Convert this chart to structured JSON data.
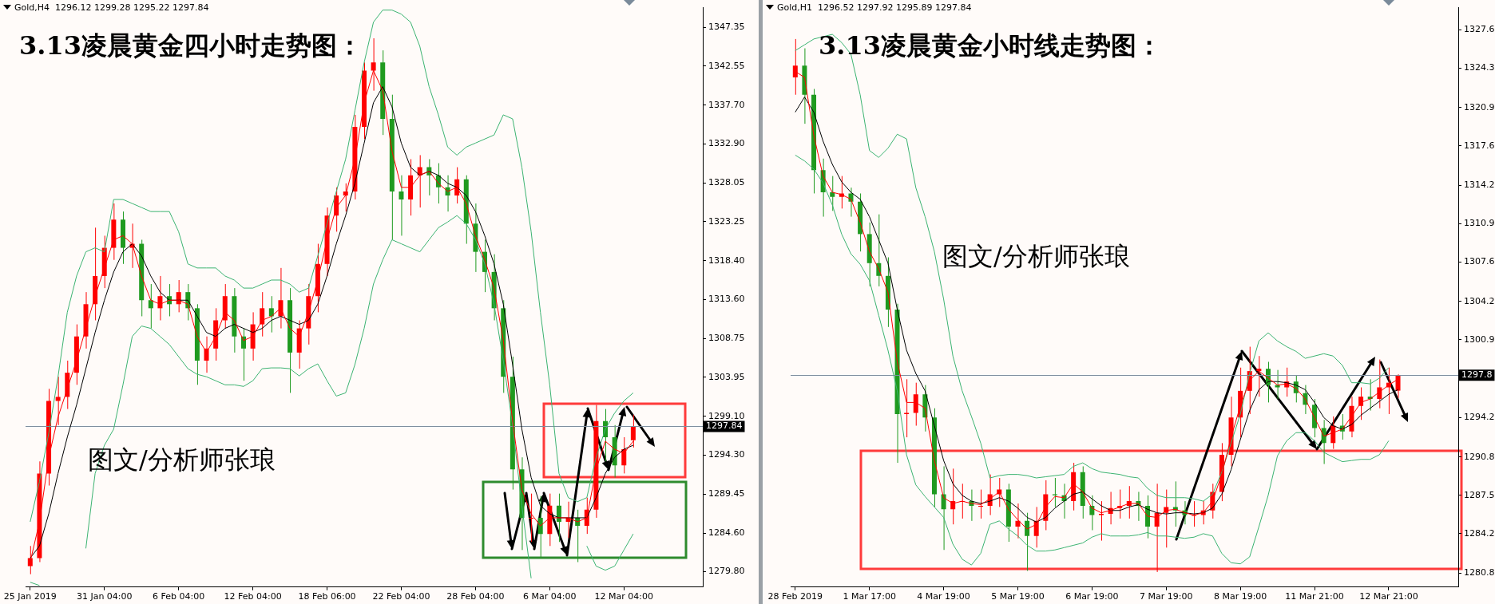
{
  "chart_data": [
    {
      "type": "candlestick",
      "title": "3.13凌晨黄金四小时走势图：",
      "subtitle": "Gold,H4  1296.12 1299.28 1295.22 1297.84",
      "annotations": [
        "图文/分析师张琅"
      ],
      "categories": [
        "25 Jan 2019",
        null,
        null,
        null,
        null,
        null,
        null,
        null,
        "31 Jan 04:00",
        null,
        null,
        null,
        null,
        null,
        null,
        null,
        "6 Feb 04:00",
        null,
        null,
        null,
        null,
        null,
        null,
        null,
        "12 Feb 04:00",
        null,
        null,
        null,
        null,
        null,
        null,
        null,
        "18 Feb 06:00",
        null,
        null,
        null,
        null,
        null,
        null,
        null,
        "22 Feb 04:00",
        null,
        null,
        null,
        null,
        null,
        null,
        null,
        "28 Feb 04:00",
        null,
        null,
        null,
        null,
        null,
        null,
        null,
        "6 Mar 04:00",
        null,
        null,
        null,
        null,
        null,
        null,
        null,
        "12 Mar 04:00",
        null,
        null,
        null,
        null,
        null,
        null,
        null,
        null
      ],
      "ohlc": [
        [
          1280.5,
          1283,
          1279.5,
          1281.5
        ],
        [
          1281.5,
          1293.5,
          1281,
          1292
        ],
        [
          1292,
          1302.5,
          1290.5,
          1301
        ],
        [
          1301,
          1304,
          1298,
          1301.5
        ],
        [
          1301.5,
          1306,
          1300,
          1304.5
        ],
        [
          1304.5,
          1310.5,
          1303,
          1309
        ],
        [
          1309,
          1314.5,
          1307.5,
          1313
        ],
        [
          1313,
          1322.5,
          1311,
          1316.5
        ],
        [
          1316.5,
          1321.5,
          1315,
          1320
        ],
        [
          1320,
          1325.5,
          1318.5,
          1323.5
        ],
        [
          1323.5,
          1324.5,
          1318,
          1320
        ],
        [
          1320,
          1323,
          1317.5,
          1320.5
        ],
        [
          1320.5,
          1321,
          1311.5,
          1313.5
        ],
        [
          1313.5,
          1315.5,
          1310,
          1312.5
        ],
        [
          1312.5,
          1316.5,
          1311,
          1314
        ],
        [
          1314,
          1315.5,
          1311.5,
          1313
        ],
        [
          1313,
          1316,
          1312,
          1314.5
        ],
        [
          1314.5,
          1315.5,
          1311,
          1312.5
        ],
        [
          1312.5,
          1313,
          1303,
          1306
        ],
        [
          1306,
          1309,
          1304.5,
          1307.5
        ],
        [
          1307.5,
          1312.5,
          1306,
          1311
        ],
        [
          1311,
          1315.5,
          1310,
          1314
        ],
        [
          1314,
          1315,
          1307,
          1309
        ],
        [
          1309,
          1310,
          1303.5,
          1307.5
        ],
        [
          1307.5,
          1312,
          1306,
          1310.5
        ],
        [
          1310.5,
          1314.5,
          1309,
          1312.5
        ],
        [
          1312.5,
          1314,
          1309.5,
          1311.5
        ],
        [
          1311.5,
          1317.5,
          1310,
          1313.5
        ],
        [
          1313.5,
          1315,
          1302,
          1307
        ],
        [
          1307,
          1311,
          1305,
          1310
        ],
        [
          1310,
          1315.5,
          1308,
          1314
        ],
        [
          1314,
          1320.5,
          1312,
          1318
        ],
        [
          1318,
          1325,
          1316.5,
          1324
        ],
        [
          1324,
          1327.5,
          1322,
          1326.5
        ],
        [
          1326.5,
          1328,
          1324.5,
          1327
        ],
        [
          1327,
          1336.5,
          1326,
          1335
        ],
        [
          1335,
          1343,
          1333.5,
          1342
        ],
        [
          1342,
          1346,
          1339.5,
          1343
        ],
        [
          1343,
          1344.5,
          1334,
          1336
        ],
        [
          1336,
          1339,
          1321,
          1327
        ],
        [
          1327,
          1329,
          1321.5,
          1326
        ],
        [
          1326,
          1331,
          1324,
          1329
        ],
        [
          1329,
          1331.5,
          1325,
          1330
        ],
        [
          1330,
          1331,
          1326.5,
          1329
        ],
        [
          1329,
          1330.5,
          1325.5,
          1327.5
        ],
        [
          1327.5,
          1329,
          1324.5,
          1326.5
        ],
        [
          1326.5,
          1330,
          1325.5,
          1328.5
        ],
        [
          1328.5,
          1329,
          1320.5,
          1323
        ],
        [
          1323,
          1325.5,
          1317,
          1319.5
        ],
        [
          1319.5,
          1321,
          1314.5,
          1317
        ],
        [
          1317,
          1319.2,
          1311,
          1312.5
        ],
        [
          1312.5,
          1313.5,
          1302,
          1304
        ],
        [
          1304,
          1306.5,
          1290,
          1292.5
        ],
        [
          1292.5,
          1294,
          1282.5,
          1286.5
        ],
        [
          1286.5,
          1289.5,
          1283.5,
          1286.5
        ],
        [
          1286.5,
          1289.2,
          1281.5,
          1284.5
        ],
        [
          1284.5,
          1289.5,
          1283,
          1288
        ],
        [
          1288,
          1289.5,
          1283.5,
          1286
        ],
        [
          1286,
          1288.5,
          1284,
          1286.5
        ],
        [
          1286.5,
          1287.5,
          1281,
          1285.5
        ],
        [
          1285.5,
          1289,
          1284.5,
          1287.5
        ],
        [
          1287.5,
          1300.5,
          1286.5,
          1298.5
        ],
        [
          1298.5,
          1300,
          1293.5,
          1296.5
        ],
        [
          1296.5,
          1298,
          1291.5,
          1293
        ],
        [
          1293,
          1296.5,
          1292,
          1295
        ],
        [
          1296.12,
          1299.28,
          1295.22,
          1297.84
        ],
        null,
        null,
        null,
        null,
        null,
        null,
        null
      ],
      "colors": [
        "#ff0000",
        "#ff0000",
        "#ff0000",
        "#ff0000",
        "#ff0000",
        "#ff0000",
        "#ff0000",
        "#ff0000",
        "#ff0000",
        "#ff0000",
        "#1f9a1f",
        "#ff0000",
        "#1f9a1f",
        "#1f9a1f",
        "#ff0000",
        "#1f9a1f",
        "#ff0000",
        "#1f9a1f",
        "#1f9a1f",
        "#ff0000",
        "#ff0000",
        "#ff0000",
        "#1f9a1f",
        "#1f9a1f",
        "#ff0000",
        "#ff0000",
        "#1f9a1f",
        "#ff0000",
        "#1f9a1f",
        "#ff0000",
        "#ff0000",
        "#ff0000",
        "#ff0000",
        "#ff0000",
        "#ff0000",
        "#ff0000",
        "#ff0000",
        "#ff0000",
        "#1f9a1f",
        "#1f9a1f",
        "#1f9a1f",
        "#ff0000",
        "#ff0000",
        "#1f9a1f",
        "#1f9a1f",
        "#1f9a1f",
        "#ff0000",
        "#1f9a1f",
        "#1f9a1f",
        "#1f9a1f",
        "#1f9a1f",
        "#1f9a1f",
        "#1f9a1f",
        "#1f9a1f",
        "#ff0000",
        "#1f9a1f",
        "#ff0000",
        "#1f9a1f",
        "#ff0000",
        "#1f9a1f",
        "#ff0000",
        "#ff0000",
        "#1f9a1f",
        "#1f9a1f",
        "#ff0000",
        "#ff0000",
        null,
        null,
        null,
        null,
        null,
        null,
        null
      ],
      "series": [
        {
          "type": "line",
          "color": "#ff0000",
          "values": [
            1281,
            1286,
            1294,
            1299,
            1302.5,
            1306,
            1310,
            1314,
            1317.5,
            1321,
            1321.5,
            1320.5,
            1316.5,
            1313.5,
            1313,
            1313.5,
            1313.5,
            1313,
            1309,
            1307,
            1309,
            1312,
            1311,
            1308.5,
            1309,
            1311,
            1311.5,
            1312.5,
            1310,
            1309,
            1312,
            1316,
            1321,
            1325,
            1326.5,
            1331,
            1338,
            1342,
            1339.5,
            1332,
            1327.5,
            1327.5,
            1329,
            1329.5,
            1328,
            1327,
            1327.5,
            1325.5,
            1321.5,
            1318.5,
            1315,
            1308.5,
            1298.5,
            1290,
            1287,
            1285.5,
            1286.5,
            1286.5,
            1286.5,
            1286,
            1286.5,
            1292.5,
            1296,
            1295,
            1294.5,
            1296,
            null,
            null,
            null,
            null,
            null,
            null,
            null
          ]
        },
        {
          "type": "line",
          "color": "#000000",
          "values": [
            1281.5,
            1283,
            1287,
            1292,
            1296.5,
            1300.5,
            1305,
            1309.5,
            1313.5,
            1317,
            1319.5,
            1320.5,
            1319,
            1316.5,
            1314.5,
            1313.5,
            1313.5,
            1313.5,
            1311.5,
            1309.5,
            1309,
            1310,
            1310.5,
            1310,
            1309.5,
            1310,
            1311,
            1311.5,
            1311,
            1310.5,
            1311,
            1313,
            1316.5,
            1320.5,
            1324,
            1328,
            1333,
            1338,
            1340,
            1337.5,
            1333,
            1330,
            1329,
            1329.5,
            1329,
            1328,
            1327.5,
            1326.5,
            1324.5,
            1321.5,
            1318,
            1313,
            1305.5,
            1297.5,
            1291.5,
            1288,
            1287,
            1286.5,
            1286.5,
            1286.5,
            1286.5,
            1289,
            1292,
            1294,
            1295,
            1295.5,
            null,
            null,
            null,
            null,
            null,
            null,
            null
          ]
        },
        {
          "type": "line",
          "color": "#3cb371",
          "values": [
            1286,
            1291,
            1297,
            1304,
            1312,
            1316.5,
            1319.5,
            1320,
            1319.5,
            1326,
            1326,
            1325.5,
            1325,
            1324.5,
            1324.5,
            1324.5,
            1322,
            1318,
            1317.5,
            1317.5,
            1317.5,
            1316.5,
            1316,
            1315,
            1315,
            1315.5,
            1316,
            1316,
            1315.5,
            1314.5,
            1315,
            1319,
            1323,
            1327,
            1331,
            1337,
            1343,
            1348,
            1349.5,
            1349.5,
            1349,
            1348,
            1345,
            1340,
            1336.5,
            1332.5,
            1331.5,
            1332.5,
            1333,
            1333.5,
            1334,
            1336.5,
            1336,
            1330,
            1322,
            1312,
            1303,
            1292,
            1289,
            1288.5,
            1289,
            1294,
            1297.5,
            1299.5,
            1301,
            1302,
            null,
            null,
            null,
            null,
            null,
            null,
            null
          ]
        },
        {
          "type": "line",
          "color": "#3cb371",
          "values": [
            1278.5,
            1278.1,
            null,
            null,
            null,
            null,
            1282.7,
            1292,
            1295.5,
            1297.5,
            1303,
            1309,
            1310.3,
            1310,
            1309,
            1308,
            1306.5,
            1305,
            1304.3,
            1304,
            1303.5,
            1303,
            1303,
            1302.8,
            1303.5,
            1305,
            1305.1,
            1305.1,
            1305,
            1304.1,
            1305,
            1305.6,
            1303.5,
            1301.6,
            1302,
            1305.5,
            1310,
            1315.5,
            1318.5,
            1321,
            1320.5,
            1320,
            1319.5,
            1321,
            1322.5,
            1323.2,
            1324,
            1323,
            1321,
            1318,
            1313,
            1306,
            1298,
            1288,
            1279,
            null,
            null,
            null,
            null,
            null,
            1283,
            1280.5,
            1280,
            1280.5,
            1282.5,
            1284.5,
            null,
            null,
            null,
            null,
            null,
            null,
            null
          ]
        }
      ],
      "ylim": [
        1277.9,
        1349.8
      ],
      "yticks": [
        1347.35,
        1342.55,
        {
          "value": 1337.7,
          "label": "1337.70"
        },
        {
          "value": 1332.9,
          "label": "1332.90"
        },
        1328.05,
        1323.25,
        {
          "value": 1318.4,
          "label": "1318.40"
        },
        {
          "value": 1313.6,
          "label": "1313.60"
        },
        1308.75,
        1303.95,
        {
          "value": 1299.1,
          "label": "1299.10"
        },
        {
          "value": 1294.3,
          "label": "1294.30"
        },
        1289.45,
        {
          "value": 1284.6,
          "label": "1284.60"
        },
        {
          "value": 1279.8,
          "label": "1279.80"
        }
      ],
      "ref_lines": [
        {
          "axis": "y",
          "value": 1297.84,
          "label": "1297.84",
          "color": "#8090a0"
        }
      ]
    },
    {
      "type": "candlestick",
      "title": "3.13凌晨黄金小时线走势图：",
      "subtitle": "Gold,H1  1296.52 1297.92 1295.89 1297.84",
      "annotations": [
        "图文/分析师张琅"
      ],
      "categories": [
        "28 Feb 2019",
        null,
        null,
        null,
        null,
        null,
        null,
        null,
        "1 Mar 17:00",
        null,
        null,
        null,
        null,
        null,
        null,
        null,
        "4 Mar 19:00",
        null,
        null,
        null,
        null,
        null,
        null,
        null,
        "5 Mar 19:00",
        null,
        null,
        null,
        null,
        null,
        null,
        null,
        "6 Mar 19:00",
        null,
        null,
        null,
        null,
        null,
        null,
        null,
        "7 Mar 19:00",
        null,
        null,
        null,
        null,
        null,
        null,
        null,
        "8 Mar 19:00",
        null,
        null,
        null,
        null,
        null,
        null,
        null,
        "11 Mar 21:00",
        null,
        null,
        null,
        null,
        null,
        null,
        null,
        "12 Mar 21:00",
        null,
        null,
        null,
        null,
        null,
        null,
        null
      ],
      "ohlc": [
        [
          1323.5,
          1326.8,
          1322,
          1324.5
        ],
        [
          1324.5,
          1326,
          1319.5,
          1322
        ],
        [
          1322,
          1322.5,
          1313.5,
          1315.5
        ],
        [
          1315.5,
          1316.5,
          1311.5,
          1313.6
        ],
        [
          1313.6,
          1315,
          1312,
          1313.2
        ],
        [
          1313.2,
          1315,
          1312.2,
          1313.5
        ],
        [
          1313.5,
          1314,
          1311.5,
          1312.8
        ],
        [
          1312.8,
          1313.5,
          1308.5,
          1310
        ],
        [
          1310,
          1311,
          1305.5,
          1307.5
        ],
        [
          1307.5,
          1311.7,
          1305.5,
          1306.4
        ],
        [
          1306.4,
          1308,
          1302,
          1303.5
        ],
        [
          1303.5,
          1304,
          1290.3,
          1294.5
        ],
        [
          1294.5,
          1297.5,
          1292.5,
          1294.6
        ],
        [
          1294.6,
          1297.2,
          1293.5,
          1296.2
        ],
        [
          1296.2,
          1297,
          1293,
          1294.2
        ],
        [
          1294.2,
          1295,
          1286.5,
          1287.6
        ],
        [
          1287.6,
          1290,
          1282.8,
          1286.3
        ],
        [
          1286.3,
          1289.8,
          1285,
          1287
        ],
        [
          1287,
          1288.5,
          1285.5,
          1287
        ],
        [
          1287,
          1288,
          1285.3,
          1286.6
        ],
        [
          1286.6,
          1288,
          1285.5,
          1286.6
        ],
        [
          1286.6,
          1289.3,
          1285.8,
          1287.6
        ],
        [
          1287.6,
          1289,
          1286.5,
          1288
        ],
        [
          1288,
          1288.5,
          1283.5,
          1284.8
        ],
        [
          1284.8,
          1286.8,
          1283.8,
          1285.3
        ],
        [
          1285.3,
          1286,
          1281,
          1284
        ],
        [
          1284,
          1286.5,
          1283,
          1285.3
        ],
        [
          1285.3,
          1288.8,
          1284.5,
          1287.6
        ],
        [
          1287.6,
          1289,
          1286.5,
          1287.5
        ],
        [
          1287.5,
          1288.5,
          1285.5,
          1287
        ],
        [
          1287,
          1290.3,
          1286.2,
          1289.5
        ],
        [
          1289.5,
          1290,
          1285.5,
          1286.6
        ],
        [
          1286.6,
          1287.5,
          1284.5,
          1285.8
        ],
        [
          1285.8,
          1287,
          1283.6,
          1285.9
        ],
        [
          1285.9,
          1287.8,
          1285,
          1286.4
        ],
        [
          1286.4,
          1288,
          1285.5,
          1286.6
        ],
        [
          1286.6,
          1288.3,
          1285.5,
          1287
        ],
        [
          1287,
          1287.8,
          1285.3,
          1286.6
        ],
        [
          1286.6,
          1287.5,
          1283.8,
          1284.8
        ],
        [
          1284.8,
          1288.5,
          1280.9,
          1286
        ],
        [
          1286,
          1288,
          1283,
          1286.5
        ],
        [
          1286.5,
          1288.7,
          1284.8,
          1286.2
        ],
        [
          1286.2,
          1287,
          1285,
          1285.8
        ],
        [
          1285.8,
          1287,
          1284.8,
          1285.8
        ],
        [
          1285.8,
          1287,
          1285,
          1286.2
        ],
        [
          1286.2,
          1288.5,
          1285.5,
          1287.8
        ],
        [
          1287.8,
          1292,
          1287,
          1291
        ],
        [
          1291,
          1296,
          1290,
          1294.2
        ],
        [
          1294.2,
          1298.5,
          1292.5,
          1296.5
        ],
        [
          1296.5,
          1300.3,
          1294.5,
          1298.2
        ],
        [
          1298.2,
          1299.5,
          1296,
          1298.4
        ],
        [
          1298.4,
          1299,
          1295.5,
          1297
        ],
        [
          1297,
          1298.3,
          1295.8,
          1296.8
        ],
        [
          1296.8,
          1298.5,
          1296,
          1297.3
        ],
        [
          1297.3,
          1297.8,
          1295.5,
          1296.3
        ],
        [
          1296.3,
          1297,
          1294.5,
          1295.3
        ],
        [
          1295.3,
          1295.8,
          1292.5,
          1293.3
        ],
        [
          1293.3,
          1294,
          1290.2,
          1292
        ],
        [
          1292,
          1294.3,
          1291.5,
          1293.5
        ],
        [
          1293.5,
          1294.5,
          1292.3,
          1293
        ],
        [
          1293,
          1296,
          1292.5,
          1295.2
        ],
        [
          1295.2,
          1296.8,
          1294,
          1296
        ],
        [
          1296,
          1297.5,
          1294.8,
          1295.8
        ],
        [
          1295.8,
          1299.2,
          1295,
          1296.8
        ],
        [
          1296.8,
          1298.5,
          1294.5,
          1297.2
        ],
        [
          1296.52,
          1297.92,
          1295.89,
          1297.84
        ],
        null,
        null,
        null,
        null,
        null,
        null
      ],
      "colors": [
        "#ff0000",
        "#1f9a1f",
        "#1f9a1f",
        "#1f9a1f",
        "#1f9a1f",
        "#ff0000",
        "#1f9a1f",
        "#1f9a1f",
        "#1f9a1f",
        "#1f9a1f",
        "#1f9a1f",
        "#1f9a1f",
        "#ff0000",
        "#ff0000",
        "#1f9a1f",
        "#1f9a1f",
        "#1f9a1f",
        "#ff0000",
        "#ff0000",
        "#1f9a1f",
        "#ff0000",
        "#ff0000",
        "#ff0000",
        "#1f9a1f",
        "#ff0000",
        "#1f9a1f",
        "#ff0000",
        "#ff0000",
        "#1f9a1f",
        "#1f9a1f",
        "#ff0000",
        "#1f9a1f",
        "#1f9a1f",
        "#ff0000",
        "#ff0000",
        "#ff0000",
        "#ff0000",
        "#1f9a1f",
        "#1f9a1f",
        "#ff0000",
        "#ff0000",
        "#1f9a1f",
        "#1f9a1f",
        "#ff0000",
        "#ff0000",
        "#ff0000",
        "#ff0000",
        "#ff0000",
        "#ff0000",
        "#ff0000",
        "#ff0000",
        "#1f9a1f",
        "#1f9a1f",
        "#ff0000",
        "#1f9a1f",
        "#1f9a1f",
        "#1f9a1f",
        "#1f9a1f",
        "#ff0000",
        "#1f9a1f",
        "#ff0000",
        "#ff0000",
        "#1f9a1f",
        "#ff0000",
        "#ff0000",
        "#ff0000",
        null,
        null,
        null,
        null,
        null,
        null
      ],
      "series": [
        {
          "type": "line",
          "color": "#ff0000",
          "values": [
            1324,
            1323.5,
            1318.5,
            1315,
            1313.6,
            1313.4,
            1313,
            1311,
            1308.5,
            1307,
            1305,
            1299,
            1295.5,
            1295.5,
            1295,
            1290.5,
            1287.3,
            1286.8,
            1287,
            1286.8,
            1286.7,
            1287.2,
            1287.8,
            1286.3,
            1285.4,
            1284.6,
            1285,
            1286.5,
            1287.4,
            1287.3,
            1288.5,
            1287.8,
            1286.4,
            1286,
            1286.2,
            1286.5,
            1286.8,
            1286.8,
            1285.7,
            1285.6,
            1286.2,
            1286.3,
            1286,
            1285.8,
            1286,
            1287,
            1289.3,
            1292.5,
            1295.2,
            1297.4,
            1298.2,
            1297.6,
            1297,
            1297.1,
            1296.7,
            1295.8,
            1294.2,
            1292.6,
            1292.9,
            1293.2,
            1294.3,
            1295.5,
            1295.8,
            1296.4,
            1297,
            1297.5,
            null,
            null,
            null,
            null,
            null,
            null
          ]
        },
        {
          "type": "line",
          "color": "#000000",
          "values": [
            1320.5,
            1321.8,
            1320.5,
            1318,
            1316,
            1314.5,
            1313.6,
            1313,
            1311.5,
            1309.5,
            1307.5,
            1303.5,
            1300,
            1298,
            1296.5,
            1293.5,
            1290.5,
            1288.5,
            1287.5,
            1287,
            1286.8,
            1287,
            1287.3,
            1287,
            1286.4,
            1285.6,
            1285.2,
            1285.6,
            1286.4,
            1287,
            1287.6,
            1287.8,
            1287.2,
            1286.6,
            1286.2,
            1286.2,
            1286.5,
            1286.7,
            1286.3,
            1286,
            1285.9,
            1286,
            1286,
            1285.9,
            1286,
            1286.4,
            1287.6,
            1289.7,
            1292.3,
            1294.8,
            1296.6,
            1297.3,
            1297.3,
            1297.2,
            1297,
            1296.6,
            1295.5,
            1294.2,
            1293.5,
            1293.2,
            1293.6,
            1294.4,
            1295,
            1295.6,
            1296.2,
            1296.6,
            null,
            null,
            null,
            null,
            null,
            null
          ]
        },
        {
          "type": "line",
          "color": "#3cb371",
          "values": [
            1325.8,
            1326.3,
            1326.8,
            1327,
            1327.2,
            1326.5,
            1325.5,
            1322,
            1317.2,
            1316.6,
            1317.4,
            1318.6,
            1318.2,
            1314,
            1311.5,
            1308.5,
            1304.4,
            1299.5,
            1296.5,
            1294.3,
            1292,
            1289,
            1289.2,
            1289.3,
            1289.3,
            1289.2,
            1289,
            1289.1,
            1289.2,
            1289.3,
            1290,
            1290.3,
            1289.8,
            1289.5,
            1289.4,
            1289.3,
            1289.1,
            1289,
            1288.1,
            1287.5,
            1287.3,
            1287.3,
            1287.3,
            1287.2,
            1287,
            1287.6,
            1289.5,
            1292,
            1294.5,
            1298,
            1300.8,
            1301.5,
            1300.8,
            1300.3,
            1299.9,
            1299.3,
            1299.5,
            1299.7,
            1299.5,
            1298.7,
            1297.2,
            1297.2,
            1297.1,
            1297.6,
            1298.5,
            null,
            null,
            null,
            null,
            null,
            null,
            null
          ]
        },
        {
          "type": "line",
          "color": "#3cb371",
          "values": [
            1316.8,
            1316.3,
            1315.6,
            1314.4,
            1312.5,
            1310,
            1308.3,
            1307.4,
            1306,
            1303,
            1300,
            1296.5,
            1291,
            1288.4,
            1287.4,
            1286.5,
            1285.6,
            1283.3,
            1282,
            1281.5,
            1282.5,
            1285,
            1285.3,
            1284.6,
            1284,
            1283.2,
            1282.7,
            1282.7,
            1282.8,
            1283,
            1283.2,
            1283.4,
            1283.9,
            1284.2,
            1284,
            1284,
            1284,
            1284.1,
            1284.3,
            1284,
            1284,
            1283.9,
            1283.8,
            1283.9,
            1284.2,
            1284,
            1282.5,
            1281.7,
            1281.6,
            1282.2,
            1284.8,
            1287.5,
            1290.9,
            1292.2,
            1292.9,
            1292.9,
            1292.2,
            1291.2,
            1290.8,
            1290.4,
            1290.5,
            1290.6,
            1290.6,
            1291,
            1292.2,
            null,
            null,
            null,
            null,
            null,
            null,
            null
          ]
        }
      ],
      "ylim": [
        1279.6,
        1329.5
      ],
      "yticks": [
        1327.6,
        1324.3,
        1320.9,
        1317.6,
        1314.2,
        1310.9,
        1307.6,
        1304.2,
        1300.9,
        1294.2,
        1290.8,
        1287.5,
        1284.2,
        1280.8
      ],
      "ref_lines": [
        {
          "axis": "y",
          "value": 1297.84,
          "label": "1297.8",
          "color": "#8090a0"
        }
      ]
    }
  ]
}
